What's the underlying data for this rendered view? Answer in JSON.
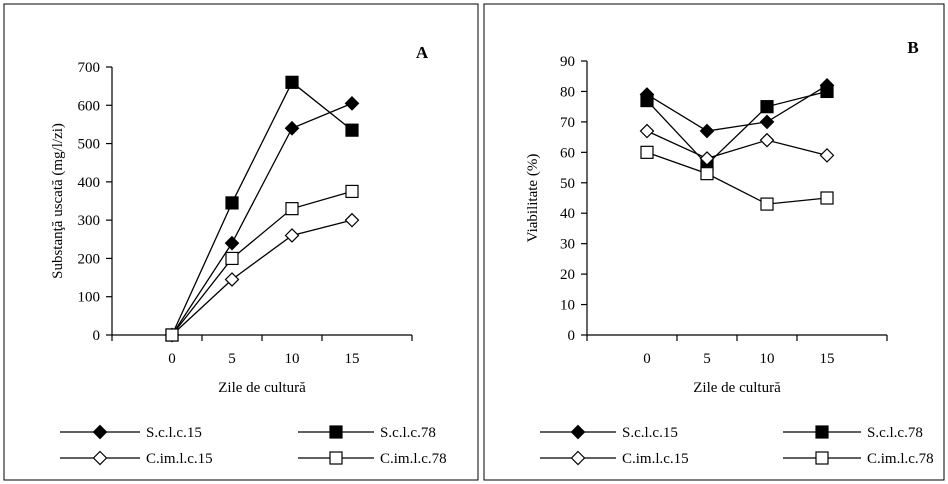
{
  "chart_data": [
    {
      "type": "line",
      "panel_label": "A",
      "title": "",
      "xlabel": "Zile de cultură",
      "ylabel": "Substanţă uscată (mg/l/zi)",
      "x": [
        0,
        5,
        10,
        15
      ],
      "ylim": [
        0,
        700
      ],
      "yticks": [
        0,
        100,
        200,
        300,
        400,
        500,
        600,
        700
      ],
      "grid": false,
      "legend_position": "bottom",
      "series": [
        {
          "name": "S.c.l.c.15",
          "marker": "diamond-filled",
          "values": [
            0,
            240,
            540,
            605
          ]
        },
        {
          "name": "S.c.l.c.78",
          "marker": "square-filled",
          "values": [
            0,
            345,
            660,
            535
          ]
        },
        {
          "name": "C.im.l.c.15",
          "marker": "diamond-open",
          "values": [
            0,
            145,
            260,
            300
          ]
        },
        {
          "name": "C.im.l.c.78",
          "marker": "square-open",
          "values": [
            0,
            200,
            330,
            375
          ]
        }
      ]
    },
    {
      "type": "line",
      "panel_label": "B",
      "title": "",
      "xlabel": "Zile de cultură",
      "ylabel": "Viabilitate (%)",
      "x": [
        0,
        5,
        10,
        15
      ],
      "ylim": [
        0,
        90
      ],
      "yticks": [
        0,
        10,
        20,
        30,
        40,
        50,
        60,
        70,
        80,
        90
      ],
      "grid": false,
      "legend_position": "bottom",
      "series": [
        {
          "name": "S.c.l.c.15",
          "marker": "diamond-filled",
          "values": [
            79,
            67,
            70,
            82
          ]
        },
        {
          "name": "S.c.l.c.78",
          "marker": "square-filled",
          "values": [
            77,
            56,
            75,
            80
          ]
        },
        {
          "name": "C.im.l.c.15",
          "marker": "diamond-open",
          "values": [
            67,
            58,
            64,
            59
          ]
        },
        {
          "name": "C.im.l.c.78",
          "marker": "square-open",
          "values": [
            60,
            53,
            43,
            45
          ]
        }
      ]
    }
  ]
}
